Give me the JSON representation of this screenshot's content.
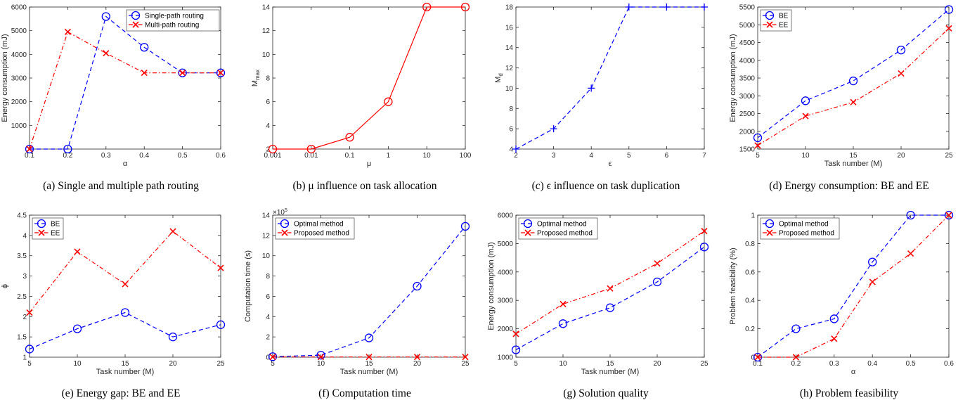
{
  "colors": {
    "blue": "#0000ff",
    "red": "#ff0000",
    "axis": "#262626"
  },
  "panels": [
    {
      "caption": "(a) Single and multiple path routing",
      "chart_data": {
        "type": "line",
        "xlabel": "α",
        "ylabel": "Energy consumption (mJ)",
        "x": [
          0.1,
          0.2,
          0.3,
          0.4,
          0.5,
          0.6
        ],
        "xticks": [
          "0.1",
          "0.2",
          "0.3",
          "0.4",
          "0.5",
          "0.6"
        ],
        "xlim": [
          0.1,
          0.6
        ],
        "ylim": [
          0,
          6000
        ],
        "yticks": [
          "1000",
          "2000",
          "3000",
          "4000",
          "5000",
          "6000"
        ],
        "legend": "top-right",
        "series": [
          {
            "name": "Single-path routing",
            "values": [
              0,
              0,
              5600,
              4300,
              3220,
              3220
            ],
            "color": "blue",
            "style": "dashed",
            "marker": "circle"
          },
          {
            "name": "Multi-path routing",
            "values": [
              0,
              4950,
              4050,
              3220,
              3220,
              3220
            ],
            "color": "red",
            "style": "dashdot",
            "marker": "x"
          }
        ]
      }
    },
    {
      "caption": "(b) μ influence on task allocation",
      "chart_data": {
        "type": "line",
        "xlabel": "μ",
        "ylabel": "M",
        "ylabel_sub": "max",
        "x": [
          0.001,
          0.01,
          0.1,
          1,
          10,
          100
        ],
        "xticks": [
          "0.001",
          "0.01",
          "0.1",
          "1",
          "10",
          "100"
        ],
        "xlim": [
          0.001,
          100
        ],
        "ylim": [
          2,
          14
        ],
        "yticks": [
          "2",
          "4",
          "6",
          "8",
          "10",
          "12",
          "14"
        ],
        "legend": "none",
        "series": [
          {
            "name": "",
            "values": [
              2,
              2,
              3,
              6,
              14,
              14
            ],
            "color": "red",
            "style": "solid",
            "marker": "circle"
          }
        ]
      }
    },
    {
      "caption": "(c) ϵ influence on task duplication",
      "chart_data": {
        "type": "line",
        "xlabel": "ϵ",
        "ylabel": "M",
        "ylabel_sub": "d",
        "x": [
          2,
          3,
          4,
          5,
          6,
          7
        ],
        "xticks": [
          "2",
          "3",
          "4",
          "5",
          "6",
          "7"
        ],
        "xlim": [
          2,
          7
        ],
        "ylim": [
          4,
          18
        ],
        "yticks": [
          "4",
          "6",
          "8",
          "10",
          "12",
          "14",
          "16",
          "18"
        ],
        "legend": "none",
        "series": [
          {
            "name": "",
            "values": [
              4,
              6,
              10,
              18,
              18,
              18
            ],
            "color": "blue",
            "style": "dashed",
            "marker": "plus"
          }
        ]
      }
    },
    {
      "caption": "(d) Energy consumption: BE and EE",
      "chart_data": {
        "type": "line",
        "xlabel": "Task number (M)",
        "ylabel": "Energy consumption (mJ)",
        "x": [
          5,
          10,
          15,
          20,
          25
        ],
        "xticks": [
          "5",
          "10",
          "15",
          "20",
          "25"
        ],
        "xlim": [
          5,
          25
        ],
        "ylim": [
          1500,
          5500
        ],
        "yticks": [
          "1500",
          "2000",
          "2500",
          "3000",
          "3500",
          "4000",
          "4500",
          "5000",
          "5500"
        ],
        "legend": "top-left",
        "series": [
          {
            "name": "BE",
            "values": [
              1820,
              2860,
              3420,
              4290,
              5430
            ],
            "color": "blue",
            "style": "dashed",
            "marker": "circle"
          },
          {
            "name": "EE",
            "values": [
              1600,
              2430,
              2820,
              3630,
              4900
            ],
            "color": "red",
            "style": "dashdot",
            "marker": "x"
          }
        ]
      }
    },
    {
      "caption": "(e) Energy gap: BE and EE",
      "chart_data": {
        "type": "line",
        "xlabel": "Task number (M)",
        "ylabel": "ϕ",
        "x": [
          5,
          10,
          15,
          20,
          25
        ],
        "xticks": [
          "5",
          "10",
          "15",
          "20",
          "25"
        ],
        "xlim": [
          5,
          25
        ],
        "ylim": [
          1,
          4.5
        ],
        "yticks": [
          "1",
          "1.5",
          "2",
          "2.5",
          "3",
          "3.5",
          "4",
          "4.5"
        ],
        "legend": "top-left",
        "series": [
          {
            "name": "BE",
            "values": [
              1.2,
              1.7,
              2.1,
              1.5,
              1.8
            ],
            "color": "blue",
            "style": "dashed",
            "marker": "circle"
          },
          {
            "name": "EE",
            "values": [
              2.1,
              3.6,
              2.8,
              4.1,
              3.2
            ],
            "color": "red",
            "style": "dashdot",
            "marker": "x"
          }
        ]
      }
    },
    {
      "caption": "(f) Computation time",
      "chart_data": {
        "type": "line",
        "xlabel": "Task number (M)",
        "ylabel": "Computation time (s)",
        "exponent_label": "×10",
        "exponent_power": "5",
        "x": [
          5,
          10,
          15,
          20,
          25
        ],
        "xticks": [
          "5",
          "10",
          "15",
          "20",
          "25"
        ],
        "xlim": [
          5,
          25
        ],
        "ylim": [
          0,
          14
        ],
        "yticks": [
          "0",
          "2",
          "4",
          "6",
          "8",
          "10",
          "12",
          "14"
        ],
        "legend": "top-left",
        "series": [
          {
            "name": "Optimal method",
            "values": [
              0.05,
              0.2,
              1.9,
              7.0,
              12.9
            ],
            "color": "blue",
            "style": "dashed",
            "marker": "circle"
          },
          {
            "name": "Proposed method",
            "values": [
              0.02,
              0.02,
              0.02,
              0.02,
              0.02
            ],
            "color": "red",
            "style": "dashdot",
            "marker": "x"
          }
        ]
      }
    },
    {
      "caption": "(g) Solution quality",
      "chart_data": {
        "type": "line",
        "xlabel": "Task number (M)",
        "ylabel": "Energy consumption (mJ)",
        "x": [
          5,
          10,
          15,
          20,
          25
        ],
        "xticks": [
          "5",
          "10",
          "15",
          "20",
          "25"
        ],
        "xlim": [
          5,
          25
        ],
        "ylim": [
          1000,
          6000
        ],
        "yticks": [
          "1000",
          "2000",
          "3000",
          "4000",
          "5000",
          "6000"
        ],
        "legend": "top-left",
        "series": [
          {
            "name": "Optimal method",
            "values": [
              1260,
              2180,
              2740,
              3650,
              4880
            ],
            "color": "blue",
            "style": "dashed",
            "marker": "circle"
          },
          {
            "name": "Proposed method",
            "values": [
              1820,
              2870,
              3420,
              4300,
              5440
            ],
            "color": "red",
            "style": "dashdot",
            "marker": "x"
          }
        ]
      }
    },
    {
      "caption": "(h) Problem feasibility",
      "chart_data": {
        "type": "line",
        "xlabel": "α",
        "ylabel": "Problem feasibility (%)",
        "x": [
          0.1,
          0.2,
          0.3,
          0.4,
          0.5,
          0.6
        ],
        "xticks": [
          "0.1",
          "0.2",
          "0.3",
          "0.4",
          "0.5",
          "0.6"
        ],
        "xlim": [
          0.1,
          0.6
        ],
        "ylim": [
          0,
          1
        ],
        "yticks": [
          "0",
          "0.2",
          "0.4",
          "0.6",
          "0.8",
          "1"
        ],
        "legend": "top-left",
        "series": [
          {
            "name": "Optimal method",
            "values": [
              0,
              0.2,
              0.27,
              0.67,
              1,
              1
            ],
            "color": "blue",
            "style": "dashed",
            "marker": "circle"
          },
          {
            "name": "Proposed method",
            "values": [
              0,
              0,
              0.13,
              0.53,
              0.73,
              1
            ],
            "color": "red",
            "style": "dashdot",
            "marker": "x"
          }
        ]
      }
    }
  ]
}
